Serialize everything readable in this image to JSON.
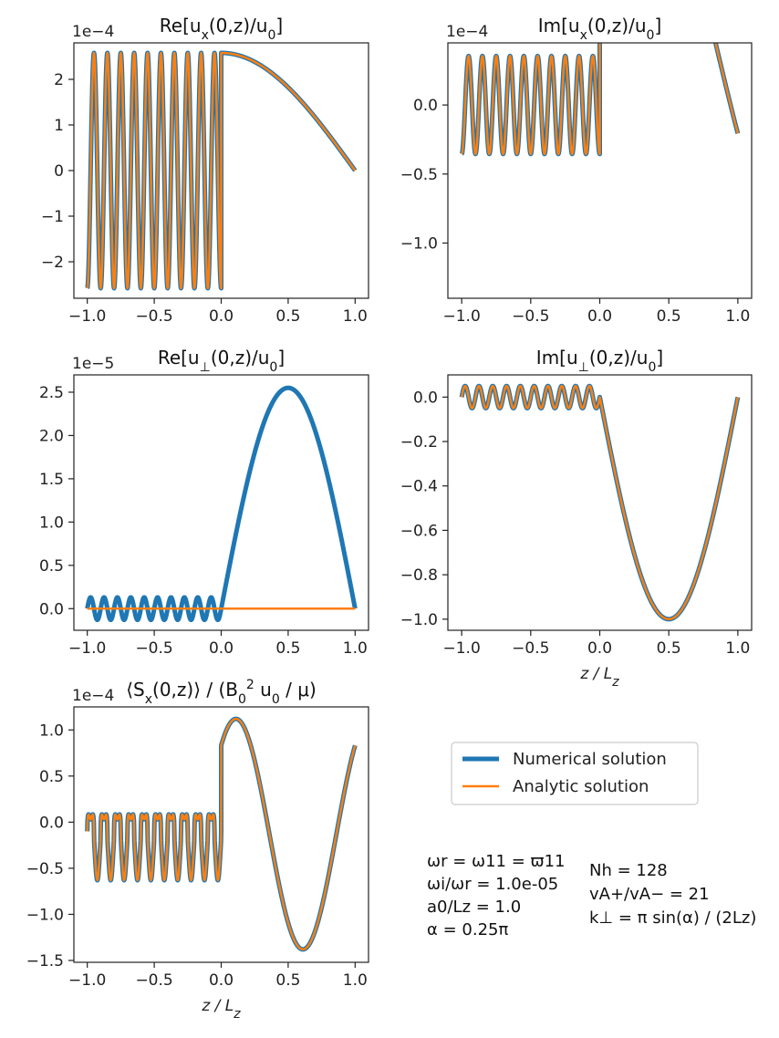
{
  "colors": {
    "numerical": "#1f77b4",
    "analytic": "#ff7f0e"
  },
  "legend": {
    "placement": "right-middle",
    "entries": [
      "Numerical solution",
      "Analytic solution"
    ]
  },
  "params": {
    "left": [
      "ωr = ω11 = ϖ11",
      "ωi/ωr = 1.0e-05",
      "a0/Lz = 1.0",
      "α = 0.25π"
    ],
    "right": [
      "Nh = 128",
      "vA+/vA− = 21",
      "k⊥ = π sin(α) / (2Lz)"
    ]
  },
  "chart_data": [
    {
      "type": "line",
      "title": "Re[u_x(0,z)/u_0]",
      "multiplier": "1e−4",
      "xlim": [
        -1.1,
        1.1
      ],
      "ylim": [
        -2.8,
        2.8
      ],
      "xticks": [
        -1.0,
        -0.5,
        0.0,
        0.5,
        1.0
      ],
      "xticklabels": [
        "−1.0",
        "−0.5",
        "0.0",
        "0.5",
        "1.0"
      ],
      "yticks": [
        -2,
        -1,
        0,
        1,
        2
      ],
      "yticklabels": [
        "−2",
        "−1",
        "0",
        "1",
        "2"
      ],
      "xlabel": "",
      "series": [
        {
          "name": "Numerical solution",
          "left": {
            "kind": "cos",
            "amplitude": 2.58,
            "cycles": 10,
            "phase": 0.5,
            "offset": 0
          },
          "right": {
            "kind": "cos",
            "amplitude": 2.58,
            "cycles": 0.25,
            "phase": 0,
            "offset": 0
          }
        },
        {
          "name": "Analytic solution",
          "left": {
            "kind": "cos",
            "amplitude": 2.58,
            "cycles": 10,
            "phase": 0.5,
            "offset": 0
          },
          "right": {
            "kind": "cos",
            "amplitude": 2.58,
            "cycles": 0.25,
            "phase": 0,
            "offset": 0
          }
        }
      ]
    },
    {
      "type": "line",
      "title": "Im[u_x(0,z)/u_0]",
      "multiplier": "1e−4",
      "xlim": [
        -1.1,
        1.1
      ],
      "ylim": [
        -1.4,
        0.45
      ],
      "xticks": [
        -1.0,
        -0.5,
        0.0,
        0.5,
        1.0
      ],
      "xticklabels": [
        "−1.0",
        "−0.5",
        "0.0",
        "0.5",
        "1.0"
      ],
      "yticks": [
        -1.0,
        -0.5,
        0.0
      ],
      "yticklabels": [
        "−1.0",
        "−0.5",
        "0.0"
      ],
      "xlabel": "",
      "series": [
        {
          "name": "Numerical solution",
          "left": {
            "kind": "cos",
            "amplitude": 0.355,
            "cycles": 10,
            "phase": 0.5,
            "offset": 0
          },
          "right": {
            "kind": "sin",
            "amplitude": 1.33,
            "cycles": 0.5,
            "phase": 0.07,
            "offset": 0.36
          }
        },
        {
          "name": "Analytic solution",
          "left": {
            "kind": "cos",
            "amplitude": 0.355,
            "cycles": 10,
            "phase": 0.5,
            "offset": 0
          },
          "right": {
            "kind": "sin",
            "amplitude": 1.33,
            "cycles": 0.5,
            "phase": 0.07,
            "offset": 0.36
          }
        }
      ]
    },
    {
      "type": "line",
      "title": "Re[u_⊥(0,z)/u_0]",
      "multiplier": "1e−5",
      "xlim": [
        -1.1,
        1.1
      ],
      "ylim": [
        -0.25,
        2.7
      ],
      "xticks": [
        -1.0,
        -0.5,
        0.0,
        0.5,
        1.0
      ],
      "xticklabels": [
        "−1.0",
        "−0.5",
        "0.0",
        "0.5",
        "1.0"
      ],
      "yticks": [
        0.0,
        0.5,
        1.0,
        1.5,
        2.0,
        2.5
      ],
      "yticklabels": [
        "0.0",
        "0.5",
        "1.0",
        "1.5",
        "2.0",
        "2.5"
      ],
      "xlabel": "",
      "series": [
        {
          "name": "Numerical solution",
          "left": {
            "kind": "sinabs",
            "amplitude": 0.13,
            "cycles": 10,
            "phase": 0,
            "offset": 0
          },
          "right": {
            "kind": "sin",
            "amplitude": 2.55,
            "cycles": 0.5,
            "phase": 0,
            "offset": 0
          }
        },
        {
          "name": "Analytic solution",
          "left": {
            "kind": "const",
            "value": 0
          },
          "right": {
            "kind": "const",
            "value": 0
          }
        }
      ]
    },
    {
      "type": "line",
      "title": "Im[u_⊥(0,z)/u_0]",
      "multiplier": "",
      "xlim": [
        -1.1,
        1.1
      ],
      "ylim": [
        -1.05,
        0.1
      ],
      "xticks": [
        -1.0,
        -0.5,
        0.0,
        0.5,
        1.0
      ],
      "xticklabels": [
        "−1.0",
        "−0.5",
        "0.0",
        "0.5",
        "1.0"
      ],
      "yticks": [
        -1.0,
        -0.8,
        -0.6,
        -0.4,
        -0.2,
        0.0
      ],
      "yticklabels": [
        "−1.0",
        "−0.8",
        "−0.6",
        "−0.4",
        "−0.2",
        "0.0"
      ],
      "xlabel": "z / L_z",
      "series": [
        {
          "name": "Numerical solution",
          "left": {
            "kind": "sinabs",
            "amplitude": 0.05,
            "cycles": 10,
            "phase": 0,
            "offset": 0
          },
          "right": {
            "kind": "sin",
            "amplitude": -1.0,
            "cycles": 0.5,
            "phase": 0,
            "offset": 0
          }
        },
        {
          "name": "Analytic solution",
          "left": {
            "kind": "sinabs",
            "amplitude": 0.05,
            "cycles": 10,
            "phase": 0,
            "offset": 0
          },
          "right": {
            "kind": "sin",
            "amplitude": -1.0,
            "cycles": 0.5,
            "phase": 0,
            "offset": 0
          }
        }
      ]
    },
    {
      "type": "line",
      "title": "⟨S_x(0,z)⟩ / (B_0^2 u_0 / μ)",
      "multiplier": "1e−4",
      "xlim": [
        -1.1,
        1.1
      ],
      "ylim": [
        -1.52,
        1.25
      ],
      "xticks": [
        -1.0,
        -0.5,
        0.0,
        0.5,
        1.0
      ],
      "xticklabels": [
        "−1.0",
        "−0.5",
        "0.0",
        "0.5",
        "1.0"
      ],
      "yticks": [
        -1.5,
        -1.0,
        -0.5,
        0.0,
        0.5,
        1.0
      ],
      "yticklabels": [
        "−1.5",
        "−1.0",
        "−0.5",
        "0.0",
        "0.5",
        "1.0"
      ],
      "xlabel": "z / L_z",
      "series": [
        {
          "name": "Numerical solution",
          "left": {
            "kind": "poynting",
            "amplitude": 0.55,
            "cycles": 10,
            "offset": -0.2
          },
          "right": {
            "kind": "sin",
            "amplitude": 1.25,
            "cycles": 1.0,
            "phase": 0.14,
            "offset": -0.13
          }
        },
        {
          "name": "Analytic solution",
          "left": {
            "kind": "poynting",
            "amplitude": 0.55,
            "cycles": 10,
            "offset": -0.2
          },
          "right": {
            "kind": "sin",
            "amplitude": 1.25,
            "cycles": 1.0,
            "phase": 0.14,
            "offset": -0.13
          }
        }
      ]
    }
  ]
}
